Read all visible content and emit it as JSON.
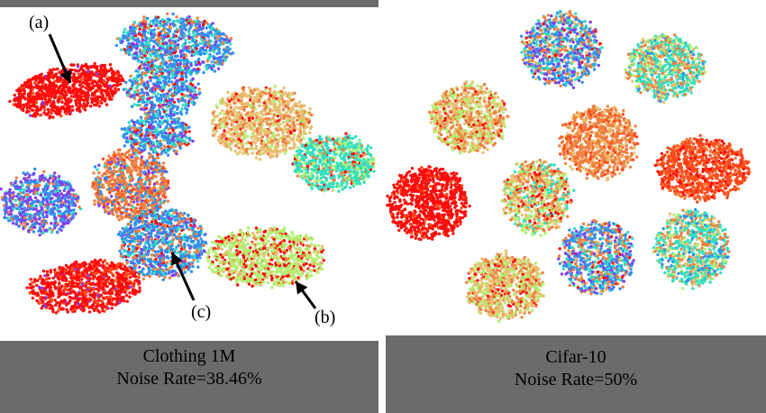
{
  "left": {
    "dataset": "Clothing 1M",
    "noise": "Noise Rate=38.46%",
    "annotations": [
      "(a)",
      "(b)",
      "(c)"
    ]
  },
  "right": {
    "dataset": "Cifar-10",
    "noise": "Noise Rate=50%"
  },
  "palette": {
    "red": "#ff0a0a",
    "orange_red": "#ff4a1a",
    "orange": "#f08040",
    "tan": "#e8c070",
    "lime": "#b0f070",
    "cyan": "#30e0c0",
    "blue": "#3090f0",
    "purple": "#8040f0"
  }
}
